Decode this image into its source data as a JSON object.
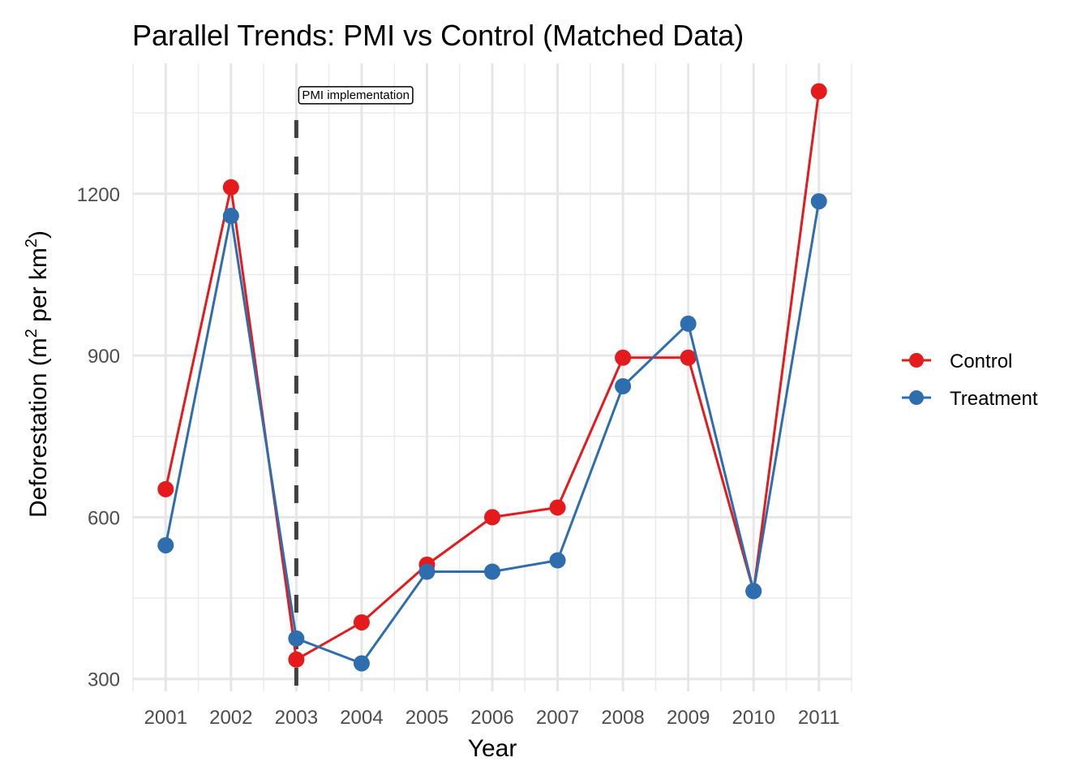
{
  "chart_data": {
    "type": "line",
    "title": "Parallel Trends: PMI vs Control (Matched Data)",
    "xlabel": "Year",
    "ylabel_parts": [
      "Deforestation (m",
      "2",
      " per km",
      "2",
      ")"
    ],
    "ylabel": "Deforestation (m² per km²)",
    "x": [
      2001,
      2002,
      2003,
      2004,
      2005,
      2006,
      2007,
      2008,
      2009,
      2010,
      2011
    ],
    "x_tick_labels": [
      "2001",
      "2002",
      "2003",
      "2004",
      "2005",
      "2006",
      "2007",
      "2008",
      "2009",
      "2010",
      "2011"
    ],
    "xlim": [
      2000.5,
      2011.5
    ],
    "ylim": [
      277,
      1442
    ],
    "y_ticks": [
      300,
      600,
      900,
      1200
    ],
    "y_tick_labels": [
      "300",
      "600",
      "900",
      "1200"
    ],
    "y_minor_ticks": [
      450,
      750,
      1050,
      1350
    ],
    "grid": true,
    "series": [
      {
        "name": "Control",
        "color": "#E41A1C",
        "values": [
          652,
          1212,
          336,
          405,
          512,
          600,
          618,
          896,
          896,
          463,
          1390
        ]
      },
      {
        "name": "Treatment",
        "color": "#2E6DAE",
        "values": [
          548,
          1159,
          375,
          329,
          499,
          499,
          520,
          843,
          959,
          463,
          1186
        ]
      }
    ],
    "vline": {
      "x": 2003,
      "style": "dashed",
      "color": "#404040"
    },
    "annotations": [
      {
        "text": "PMI implementation",
        "x": 2003,
        "y": 1385
      }
    ],
    "legend": {
      "placement": "right",
      "entries": [
        "Control",
        "Treatment"
      ]
    }
  }
}
